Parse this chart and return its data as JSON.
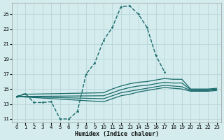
{
  "xlabel": "Humidex (Indice chaleur)",
  "xlim": [
    -0.5,
    23.5
  ],
  "ylim": [
    10.5,
    26.5
  ],
  "xticks": [
    0,
    1,
    2,
    3,
    4,
    5,
    6,
    7,
    8,
    9,
    10,
    11,
    12,
    13,
    14,
    15,
    16,
    17,
    18,
    19,
    20,
    21,
    22,
    23
  ],
  "yticks": [
    11,
    13,
    15,
    17,
    19,
    21,
    23,
    25
  ],
  "bg_color": "#d4ecee",
  "grid_color": "#b8d5d8",
  "line_color": "#1a6b6b",
  "lines": [
    {
      "x": [
        0,
        1,
        2,
        3,
        4,
        5,
        6,
        7,
        8,
        9,
        10,
        11,
        12,
        13,
        14,
        15,
        16,
        17
      ],
      "y": [
        14.0,
        14.4,
        13.2,
        13.2,
        13.3,
        11.0,
        11.0,
        12.0,
        17.0,
        18.5,
        21.5,
        23.2,
        26.0,
        26.1,
        25.0,
        23.2,
        19.5,
        17.3
      ],
      "marker": true,
      "dashed": true,
      "lw": 1.0
    },
    {
      "x": [
        0,
        1,
        10,
        11,
        12,
        13,
        14,
        15,
        16,
        17,
        18,
        19,
        20,
        21,
        22,
        23
      ],
      "y": [
        14.0,
        14.3,
        14.5,
        15.0,
        15.4,
        15.7,
        15.9,
        16.0,
        16.2,
        16.4,
        16.3,
        16.3,
        15.0,
        15.0,
        15.0,
        15.1
      ],
      "marker": false,
      "dashed": false,
      "lw": 0.9
    },
    {
      "x": [
        0,
        10,
        11,
        12,
        13,
        14,
        15,
        16,
        17,
        18,
        19,
        20,
        21,
        22,
        23
      ],
      "y": [
        14.0,
        14.1,
        14.5,
        14.9,
        15.2,
        15.4,
        15.5,
        15.7,
        15.9,
        15.8,
        15.8,
        14.9,
        14.9,
        14.9,
        15.0
      ],
      "marker": false,
      "dashed": false,
      "lw": 0.9
    },
    {
      "x": [
        0,
        10,
        11,
        12,
        13,
        14,
        15,
        16,
        17,
        18,
        19,
        20,
        21,
        22,
        23
      ],
      "y": [
        14.0,
        13.7,
        14.1,
        14.5,
        14.7,
        14.9,
        15.1,
        15.3,
        15.5,
        15.4,
        15.3,
        14.8,
        14.8,
        14.8,
        14.9
      ],
      "marker": false,
      "dashed": false,
      "lw": 0.9
    },
    {
      "x": [
        0,
        10,
        11,
        12,
        13,
        14,
        15,
        16,
        17,
        18,
        19,
        20,
        21,
        22,
        23
      ],
      "y": [
        14.0,
        13.3,
        13.7,
        14.1,
        14.3,
        14.6,
        14.8,
        15.0,
        15.2,
        15.1,
        15.0,
        14.7,
        14.7,
        14.7,
        14.8
      ],
      "marker": false,
      "dashed": false,
      "lw": 0.9
    }
  ]
}
